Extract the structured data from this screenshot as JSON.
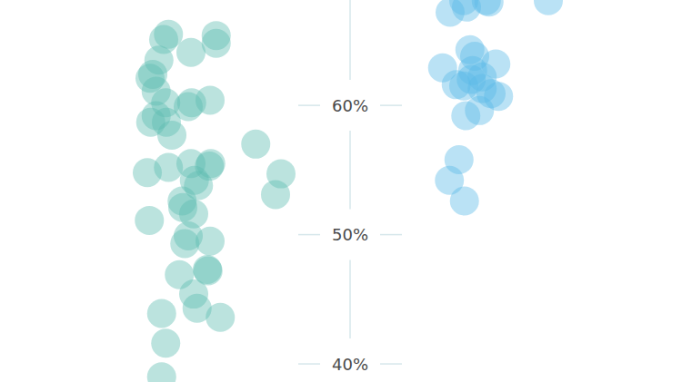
{
  "chart_data": {
    "type": "scatter",
    "ylim": [
      38.6,
      68.15
    ],
    "yticks": [
      {
        "value": 40,
        "label": "40%"
      },
      {
        "value": 50,
        "label": "50%"
      },
      {
        "value": 60,
        "label": "60%"
      }
    ],
    "xlim": [
      0,
      100
    ],
    "tick_labels": "y",
    "grid": false,
    "series": [
      {
        "color": "#5cbdb1",
        "marker": "circle",
        "x": [
          24.7,
          31.7,
          24.0,
          31.7,
          28.0,
          23.3,
          22.4,
          22.0,
          22.9,
          24.3,
          28.1,
          30.8,
          27.6,
          22.9,
          24.4,
          22.1,
          25.2,
          37.5,
          21.6,
          24.7,
          28.0,
          30.9,
          30.7,
          41.2,
          28.5,
          29.1,
          26.7,
          40.4,
          26.8,
          28.4,
          21.9,
          27.6,
          30.8,
          27.1,
          26.3,
          30.5,
          30.4,
          28.4,
          28.9,
          23.7,
          32.3,
          24.3,
          23.7
        ],
        "values": [
          65.5,
          65.4,
          65.1,
          64.8,
          64.1,
          63.5,
          62.4,
          62.1,
          61.1,
          60.2,
          60.2,
          60.4,
          59.9,
          59.2,
          58.7,
          58.7,
          57.7,
          57.0,
          54.8,
          55.2,
          55.5,
          55.5,
          55.3,
          54.7,
          54.2,
          53.8,
          52.6,
          53.1,
          52.1,
          51.6,
          51.1,
          49.9,
          49.5,
          49.3,
          46.9,
          47.2,
          47.3,
          45.4,
          44.3,
          43.9,
          43.6,
          41.6,
          39.0
        ]
      },
      {
        "color": "#5ab9e6",
        "marker": "circle",
        "x": [
          68.0,
          71.3,
          80.4,
          66.0,
          68.4,
          71.7,
          68.9,
          64.9,
          69.6,
          72.7,
          66.9,
          69.1,
          70.7,
          72.0,
          73.1,
          68.3,
          70.3,
          67.3,
          65.9,
          68.1,
          69.3,
          68.0,
          70.7
        ],
        "values": [
          68.1,
          68.1,
          68.1,
          67.2,
          67.6,
          68.0,
          64.3,
          62.9,
          63.8,
          63.2,
          61.6,
          62.0,
          61.3,
          60.9,
          60.7,
          59.2,
          59.6,
          55.8,
          54.2,
          52.6,
          62.7,
          61.5,
          62.2
        ]
      }
    ]
  }
}
